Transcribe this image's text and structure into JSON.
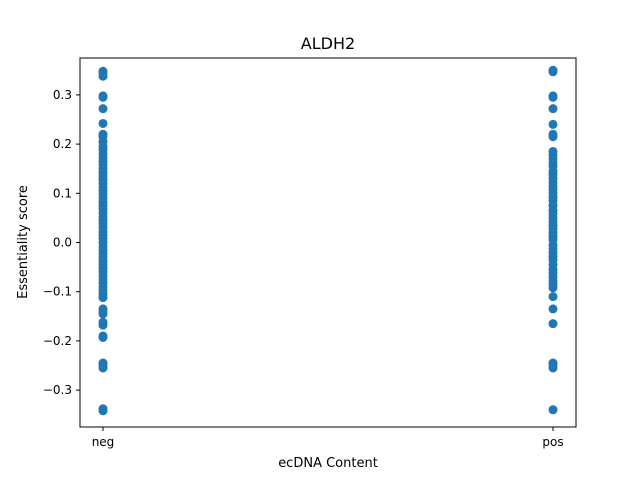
{
  "chart_data": {
    "type": "scatter",
    "title": "ALDH2",
    "xlabel": "ecDNA Content",
    "ylabel": "Essentiality score",
    "categories": [
      "neg",
      "pos"
    ],
    "ylim": [
      -0.375,
      0.375
    ],
    "yticks": [
      -0.3,
      -0.2,
      -0.1,
      0.0,
      0.1,
      0.2,
      0.3
    ],
    "ytick_labels": [
      "−0.3",
      "−0.2",
      "−0.1",
      "0.0",
      "0.1",
      "0.2",
      "0.3"
    ],
    "grid": false,
    "marker_color": "#1f77b4",
    "series": [
      {
        "category": "neg",
        "values": [
          0.348,
          0.345,
          0.338,
          0.298,
          0.295,
          0.272,
          0.242,
          0.22,
          0.215,
          0.205,
          0.195,
          0.188,
          0.18,
          0.172,
          0.165,
          0.158,
          0.15,
          0.142,
          0.135,
          0.128,
          0.12,
          0.112,
          0.105,
          0.098,
          0.09,
          0.082,
          0.075,
          0.068,
          0.06,
          0.052,
          0.045,
          0.038,
          0.03,
          0.022,
          0.015,
          0.008,
          0.0,
          -0.008,
          -0.015,
          -0.022,
          -0.03,
          -0.038,
          -0.045,
          -0.052,
          -0.06,
          -0.068,
          -0.075,
          -0.082,
          -0.09,
          -0.098,
          -0.105,
          -0.112,
          -0.135,
          -0.14,
          -0.145,
          -0.162,
          -0.168,
          -0.19,
          -0.193,
          -0.245,
          -0.25,
          -0.255,
          -0.338,
          -0.342
        ]
      },
      {
        "category": "pos",
        "values": [
          0.35,
          0.347,
          0.298,
          0.295,
          0.272,
          0.24,
          0.22,
          0.215,
          0.185,
          0.178,
          0.17,
          0.162,
          0.155,
          0.145,
          0.138,
          0.13,
          0.122,
          0.115,
          0.108,
          0.1,
          0.092,
          0.085,
          0.075,
          0.065,
          0.058,
          0.05,
          0.042,
          0.035,
          0.028,
          0.02,
          0.012,
          0.005,
          -0.005,
          -0.012,
          -0.02,
          -0.028,
          -0.035,
          -0.045,
          -0.055,
          -0.062,
          -0.07,
          -0.078,
          -0.085,
          -0.092,
          -0.11,
          -0.135,
          -0.165,
          -0.245,
          -0.25,
          -0.255,
          -0.34
        ]
      }
    ]
  }
}
